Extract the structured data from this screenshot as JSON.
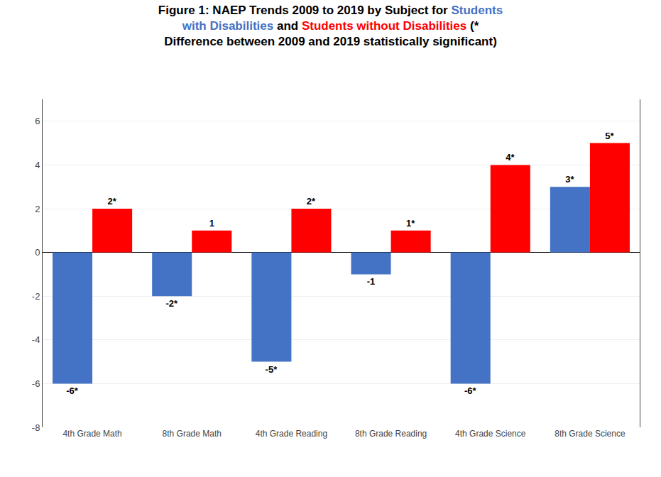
{
  "chart_data": {
    "type": "bar",
    "title": [
      [
        {
          "text": "Figure 1: NAEP Trends 2009 to 2019 by Subject for ",
          "color": "black"
        },
        {
          "text": "Students",
          "color": "#4472C4"
        }
      ],
      [
        {
          "text": "with Disabilities",
          "color": "#4472C4"
        },
        {
          "text": " and ",
          "color": "black"
        },
        {
          "text": "Students without Disabilities",
          "color": "#FF0000"
        },
        {
          "text": " (*",
          "color": "black"
        }
      ],
      [
        {
          "text": "Difference between 2009 and 2019 statistically significant)",
          "color": "black"
        }
      ]
    ],
    "categories": [
      "4th Grade Math",
      "8th Grade Math",
      "4th Grade Reading",
      "8th Grade Reading",
      "4th Grade Science",
      "8th Grade Science"
    ],
    "series": [
      {
        "color": "#4472C4",
        "values": [
          -6,
          -2,
          -5,
          -1,
          -6,
          3
        ],
        "value_labels": [
          "-6*",
          "-2*",
          "-5*",
          "-1",
          "-6*",
          "3*"
        ]
      },
      {
        "color": "#FF0000",
        "values": [
          2,
          1,
          2,
          1,
          4,
          5
        ],
        "value_labels": [
          "2*",
          "1",
          "2*",
          "1*",
          "4*",
          "5*"
        ]
      }
    ],
    "ylim": [
      -8,
      7
    ],
    "yticks": [
      -8,
      -6,
      -4,
      -2,
      0,
      2,
      4,
      6
    ],
    "grid": true,
    "data_labels": true
  }
}
